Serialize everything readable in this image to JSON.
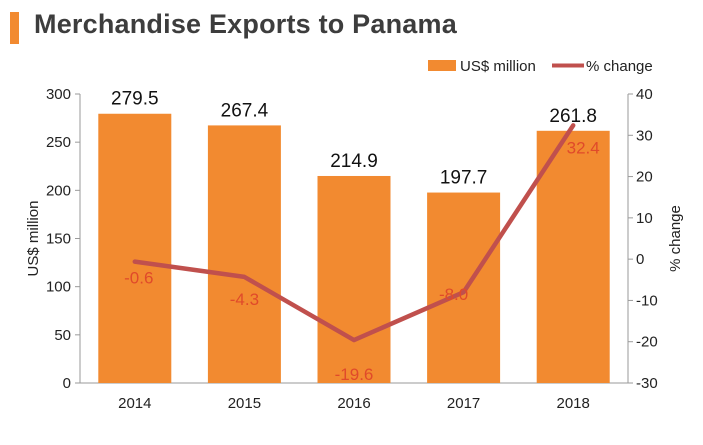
{
  "chart_data": {
    "type": "bar",
    "title": "Merchandise Exports to Panama",
    "categories": [
      "2014",
      "2015",
      "2016",
      "2017",
      "2018"
    ],
    "series": [
      {
        "name": "US$ million",
        "type": "bar",
        "axis": "left",
        "values": [
          279.5,
          267.4,
          214.9,
          197.7,
          261.8
        ],
        "labels": [
          "279.5",
          "267.4",
          "214.9",
          "197.7",
          "261.8"
        ],
        "color": "#f28a30"
      },
      {
        "name": "% change",
        "type": "line",
        "axis": "right",
        "values": [
          -0.6,
          -4.3,
          -19.6,
          -8.0,
          32.4
        ],
        "labels": [
          "-0.6",
          "-4.3",
          "-19.6",
          "-8.0",
          "32.4"
        ],
        "color": "#c0504d"
      }
    ],
    "ylabel": "US$ million",
    "y2label": "% change",
    "ylim": [
      0,
      300
    ],
    "y2lim": [
      -30,
      40
    ],
    "yticks": [
      "0",
      "50",
      "100",
      "150",
      "200",
      "250",
      "300"
    ],
    "y2ticks": [
      "-30",
      "-20",
      "-10",
      "0",
      "10",
      "20",
      "30",
      "40"
    ],
    "grid": false,
    "legend": "top-right"
  }
}
